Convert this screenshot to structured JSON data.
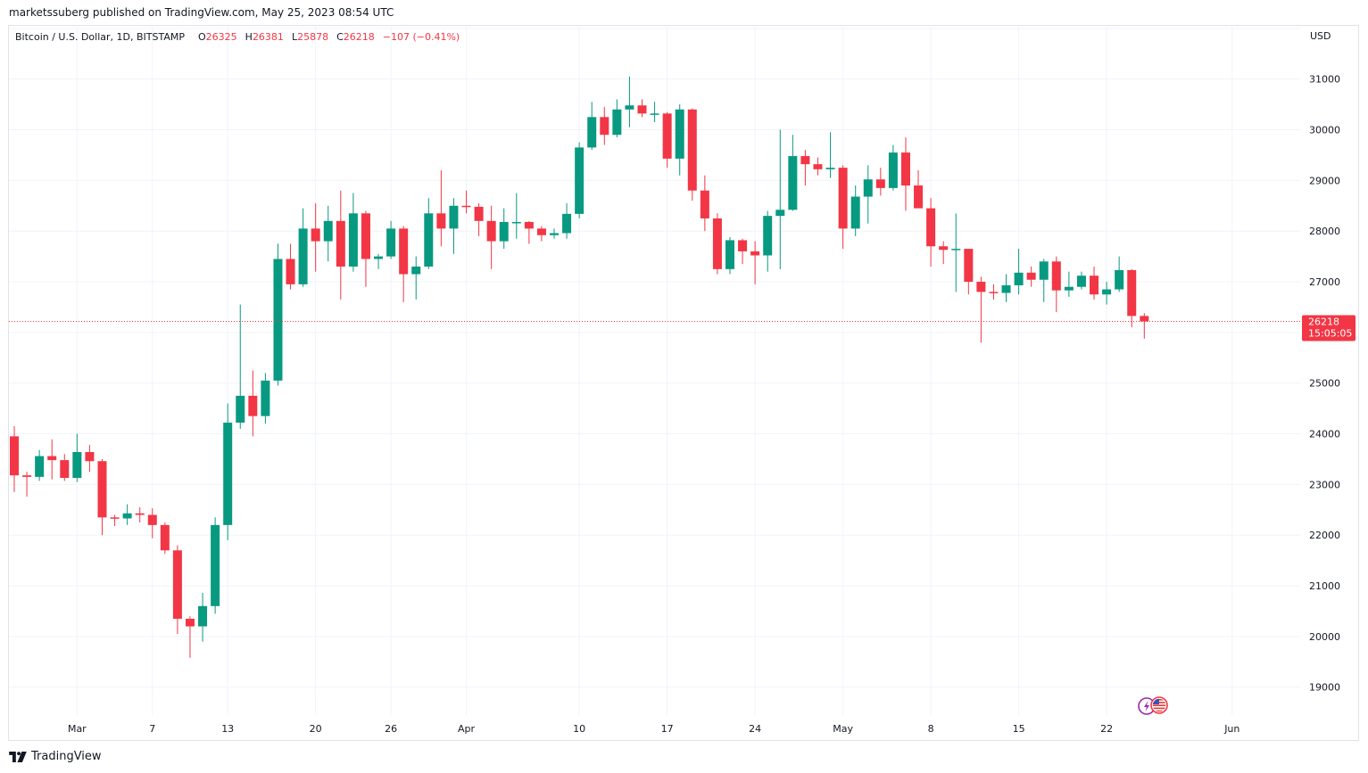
{
  "header": {
    "publisher": "marketssuberg published on TradingView.com, May 25, 2023 08:54 UTC"
  },
  "legend": {
    "symbol": "Bitcoin / U.S. Dollar, 1D, BITSTAMP",
    "o_label": "O",
    "o_value": "26325",
    "h_label": "H",
    "h_value": "26381",
    "l_label": "L",
    "l_value": "25878",
    "c_label": "C",
    "c_value": "26218",
    "change": "−107 (−0.41%)"
  },
  "axis": {
    "currency": "USD",
    "price_label": "26218",
    "countdown": "15:05:05"
  },
  "footer": {
    "brand": "TradingView"
  },
  "colors": {
    "up": "#089981",
    "down": "#f23645",
    "grid": "#f0f3fa"
  },
  "icons": [
    "tradingview-logo-icon",
    "lightning-event-icon",
    "us-flag-icon"
  ],
  "chart_data": {
    "type": "candlestick",
    "ylim": [
      18450,
      32050
    ],
    "yticks": [
      19000,
      20000,
      21000,
      22000,
      23000,
      24000,
      25000,
      26000,
      27000,
      28000,
      29000,
      30000,
      31000,
      32000
    ],
    "xticks": [
      {
        "label": "Mar",
        "date": "2023-03-01"
      },
      {
        "label": "7",
        "date": "2023-03-07"
      },
      {
        "label": "13",
        "date": "2023-03-13"
      },
      {
        "label": "20",
        "date": "2023-03-20"
      },
      {
        "label": "26",
        "date": "2023-03-26"
      },
      {
        "label": "Apr",
        "date": "2023-04-01"
      },
      {
        "label": "10",
        "date": "2023-04-10"
      },
      {
        "label": "17",
        "date": "2023-04-17"
      },
      {
        "label": "24",
        "date": "2023-04-24"
      },
      {
        "label": "May",
        "date": "2023-05-01"
      },
      {
        "label": "8",
        "date": "2023-05-08"
      },
      {
        "label": "15",
        "date": "2023-05-15"
      },
      {
        "label": "22",
        "date": "2023-05-22"
      },
      {
        "label": "Jun",
        "date": "2023-06-01"
      }
    ],
    "last_price": 26218,
    "candles": [
      {
        "date": "2023-02-24",
        "o": 23950,
        "h": 24150,
        "l": 22850,
        "c": 23180
      },
      {
        "date": "2023-02-25",
        "o": 23180,
        "h": 23250,
        "l": 22760,
        "c": 23150
      },
      {
        "date": "2023-02-26",
        "o": 23150,
        "h": 23680,
        "l": 23070,
        "c": 23560
      },
      {
        "date": "2023-02-27",
        "o": 23560,
        "h": 23890,
        "l": 23100,
        "c": 23480
      },
      {
        "date": "2023-02-28",
        "o": 23480,
        "h": 23600,
        "l": 23070,
        "c": 23130
      },
      {
        "date": "2023-03-01",
        "o": 23130,
        "h": 24000,
        "l": 23050,
        "c": 23640
      },
      {
        "date": "2023-03-02",
        "o": 23640,
        "h": 23780,
        "l": 23250,
        "c": 23460
      },
      {
        "date": "2023-03-03",
        "o": 23460,
        "h": 23500,
        "l": 22000,
        "c": 22350
      },
      {
        "date": "2023-03-04",
        "o": 22350,
        "h": 22400,
        "l": 22180,
        "c": 22330
      },
      {
        "date": "2023-03-05",
        "o": 22330,
        "h": 22610,
        "l": 22200,
        "c": 22430
      },
      {
        "date": "2023-03-06",
        "o": 22430,
        "h": 22550,
        "l": 22250,
        "c": 22400
      },
      {
        "date": "2023-03-07",
        "o": 22400,
        "h": 22530,
        "l": 21940,
        "c": 22200
      },
      {
        "date": "2023-03-08",
        "o": 22200,
        "h": 22250,
        "l": 21630,
        "c": 21700
      },
      {
        "date": "2023-03-09",
        "o": 21700,
        "h": 21800,
        "l": 20050,
        "c": 20350
      },
      {
        "date": "2023-03-10",
        "o": 20350,
        "h": 20400,
        "l": 19580,
        "c": 20200
      },
      {
        "date": "2023-03-11",
        "o": 20200,
        "h": 20860,
        "l": 19900,
        "c": 20600
      },
      {
        "date": "2023-03-12",
        "o": 20600,
        "h": 22350,
        "l": 20450,
        "c": 22200
      },
      {
        "date": "2023-03-13",
        "o": 22200,
        "h": 24600,
        "l": 21900,
        "c": 24220
      },
      {
        "date": "2023-03-14",
        "o": 24220,
        "h": 26550,
        "l": 24100,
        "c": 24750
      },
      {
        "date": "2023-03-15",
        "o": 24750,
        "h": 25250,
        "l": 23950,
        "c": 24350
      },
      {
        "date": "2023-03-16",
        "o": 24350,
        "h": 25200,
        "l": 24200,
        "c": 25050
      },
      {
        "date": "2023-03-17",
        "o": 25050,
        "h": 27750,
        "l": 24950,
        "c": 27450
      },
      {
        "date": "2023-03-18",
        "o": 27450,
        "h": 27750,
        "l": 26850,
        "c": 26950
      },
      {
        "date": "2023-03-19",
        "o": 26950,
        "h": 28450,
        "l": 26900,
        "c": 28050
      },
      {
        "date": "2023-03-20",
        "o": 28050,
        "h": 28550,
        "l": 27200,
        "c": 27800
      },
      {
        "date": "2023-03-21",
        "o": 27800,
        "h": 28500,
        "l": 27400,
        "c": 28200
      },
      {
        "date": "2023-03-22",
        "o": 28200,
        "h": 28800,
        "l": 26650,
        "c": 27300
      },
      {
        "date": "2023-03-23",
        "o": 27300,
        "h": 28750,
        "l": 27200,
        "c": 28350
      },
      {
        "date": "2023-03-24",
        "o": 28350,
        "h": 28400,
        "l": 26900,
        "c": 27450
      },
      {
        "date": "2023-03-25",
        "o": 27450,
        "h": 27550,
        "l": 27250,
        "c": 27500
      },
      {
        "date": "2023-03-26",
        "o": 27500,
        "h": 28200,
        "l": 27450,
        "c": 28050
      },
      {
        "date": "2023-03-27",
        "o": 28050,
        "h": 28100,
        "l": 26600,
        "c": 27150
      },
      {
        "date": "2023-03-28",
        "o": 27150,
        "h": 27500,
        "l": 26650,
        "c": 27300
      },
      {
        "date": "2023-03-29",
        "o": 27300,
        "h": 28650,
        "l": 27250,
        "c": 28350
      },
      {
        "date": "2023-03-30",
        "o": 28350,
        "h": 29200,
        "l": 27700,
        "c": 28050
      },
      {
        "date": "2023-03-31",
        "o": 28050,
        "h": 28650,
        "l": 27550,
        "c": 28500
      },
      {
        "date": "2023-04-01",
        "o": 28500,
        "h": 28800,
        "l": 28350,
        "c": 28480
      },
      {
        "date": "2023-04-02",
        "o": 28480,
        "h": 28550,
        "l": 27900,
        "c": 28200
      },
      {
        "date": "2023-04-03",
        "o": 28200,
        "h": 28500,
        "l": 27250,
        "c": 27800
      },
      {
        "date": "2023-04-04",
        "o": 27800,
        "h": 28450,
        "l": 27650,
        "c": 28180
      },
      {
        "date": "2023-04-05",
        "o": 28180,
        "h": 28750,
        "l": 27850,
        "c": 28180
      },
      {
        "date": "2023-04-06",
        "o": 28180,
        "h": 28200,
        "l": 27750,
        "c": 28050
      },
      {
        "date": "2023-04-07",
        "o": 28050,
        "h": 28100,
        "l": 27800,
        "c": 27920
      },
      {
        "date": "2023-04-08",
        "o": 27920,
        "h": 28050,
        "l": 27850,
        "c": 27960
      },
      {
        "date": "2023-04-09",
        "o": 27960,
        "h": 28550,
        "l": 27850,
        "c": 28340
      },
      {
        "date": "2023-04-10",
        "o": 28340,
        "h": 29750,
        "l": 28250,
        "c": 29650
      },
      {
        "date": "2023-04-11",
        "o": 29650,
        "h": 30550,
        "l": 29600,
        "c": 30250
      },
      {
        "date": "2023-04-12",
        "o": 30250,
        "h": 30450,
        "l": 29700,
        "c": 29900
      },
      {
        "date": "2023-04-13",
        "o": 29900,
        "h": 30600,
        "l": 29850,
        "c": 30400
      },
      {
        "date": "2023-04-14",
        "o": 30400,
        "h": 31050,
        "l": 30050,
        "c": 30480
      },
      {
        "date": "2023-04-15",
        "o": 30480,
        "h": 30600,
        "l": 30250,
        "c": 30320
      },
      {
        "date": "2023-04-16",
        "o": 30320,
        "h": 30550,
        "l": 30150,
        "c": 30320
      },
      {
        "date": "2023-04-17",
        "o": 30320,
        "h": 30350,
        "l": 29250,
        "c": 29430
      },
      {
        "date": "2023-04-18",
        "o": 29430,
        "h": 30500,
        "l": 29100,
        "c": 30400
      },
      {
        "date": "2023-04-19",
        "o": 30400,
        "h": 30420,
        "l": 28600,
        "c": 28800
      },
      {
        "date": "2023-04-20",
        "o": 28800,
        "h": 29100,
        "l": 28000,
        "c": 28250
      },
      {
        "date": "2023-04-21",
        "o": 28250,
        "h": 28350,
        "l": 27150,
        "c": 27250
      },
      {
        "date": "2023-04-22",
        "o": 27250,
        "h": 27880,
        "l": 27150,
        "c": 27820
      },
      {
        "date": "2023-04-23",
        "o": 27820,
        "h": 27850,
        "l": 27350,
        "c": 27600
      },
      {
        "date": "2023-04-24",
        "o": 27600,
        "h": 27800,
        "l": 26950,
        "c": 27520
      },
      {
        "date": "2023-04-25",
        "o": 27520,
        "h": 28400,
        "l": 27200,
        "c": 28300
      },
      {
        "date": "2023-04-26",
        "o": 28300,
        "h": 30000,
        "l": 27250,
        "c": 28420
      },
      {
        "date": "2023-04-27",
        "o": 28420,
        "h": 29900,
        "l": 28400,
        "c": 29480
      },
      {
        "date": "2023-04-28",
        "o": 29480,
        "h": 29600,
        "l": 28900,
        "c": 29320
      },
      {
        "date": "2023-04-29",
        "o": 29320,
        "h": 29450,
        "l": 29100,
        "c": 29220
      },
      {
        "date": "2023-04-30",
        "o": 29220,
        "h": 29950,
        "l": 29050,
        "c": 29250
      },
      {
        "date": "2023-05-01",
        "o": 29250,
        "h": 29300,
        "l": 27650,
        "c": 28050
      },
      {
        "date": "2023-05-02",
        "o": 28050,
        "h": 28900,
        "l": 27900,
        "c": 28680
      },
      {
        "date": "2023-05-03",
        "o": 28680,
        "h": 29300,
        "l": 28150,
        "c": 29020
      },
      {
        "date": "2023-05-04",
        "o": 29020,
        "h": 29250,
        "l": 28700,
        "c": 28850
      },
      {
        "date": "2023-05-05",
        "o": 28850,
        "h": 29700,
        "l": 28800,
        "c": 29550
      },
      {
        "date": "2023-05-06",
        "o": 29550,
        "h": 29850,
        "l": 28400,
        "c": 28900
      },
      {
        "date": "2023-05-07",
        "o": 28900,
        "h": 29200,
        "l": 28450,
        "c": 28450
      },
      {
        "date": "2023-05-08",
        "o": 28450,
        "h": 28650,
        "l": 27300,
        "c": 27700
      },
      {
        "date": "2023-05-09",
        "o": 27700,
        "h": 27800,
        "l": 27350,
        "c": 27630
      },
      {
        "date": "2023-05-10",
        "o": 27630,
        "h": 28350,
        "l": 26800,
        "c": 27650
      },
      {
        "date": "2023-05-11",
        "o": 27650,
        "h": 27650,
        "l": 26750,
        "c": 27000
      },
      {
        "date": "2023-05-12",
        "o": 27000,
        "h": 27100,
        "l": 25800,
        "c": 26800
      },
      {
        "date": "2023-05-13",
        "o": 26800,
        "h": 26950,
        "l": 26650,
        "c": 26780
      },
      {
        "date": "2023-05-14",
        "o": 26780,
        "h": 27150,
        "l": 26600,
        "c": 26930
      },
      {
        "date": "2023-05-15",
        "o": 26930,
        "h": 27650,
        "l": 26750,
        "c": 27180
      },
      {
        "date": "2023-05-16",
        "o": 27180,
        "h": 27300,
        "l": 26900,
        "c": 27040
      },
      {
        "date": "2023-05-17",
        "o": 27040,
        "h": 27450,
        "l": 26600,
        "c": 27400
      },
      {
        "date": "2023-05-18",
        "o": 27400,
        "h": 27500,
        "l": 26400,
        "c": 26830
      },
      {
        "date": "2023-05-19",
        "o": 26830,
        "h": 27200,
        "l": 26700,
        "c": 26900
      },
      {
        "date": "2023-05-20",
        "o": 26900,
        "h": 27200,
        "l": 26850,
        "c": 27120
      },
      {
        "date": "2023-05-21",
        "o": 27120,
        "h": 27300,
        "l": 26650,
        "c": 26750
      },
      {
        "date": "2023-05-22",
        "o": 26750,
        "h": 27000,
        "l": 26550,
        "c": 26850
      },
      {
        "date": "2023-05-23",
        "o": 26850,
        "h": 27500,
        "l": 26800,
        "c": 27230
      },
      {
        "date": "2023-05-24",
        "o": 27230,
        "h": 27250,
        "l": 26100,
        "c": 26325
      },
      {
        "date": "2023-05-25",
        "o": 26325,
        "h": 26381,
        "l": 25878,
        "c": 26218
      }
    ]
  }
}
